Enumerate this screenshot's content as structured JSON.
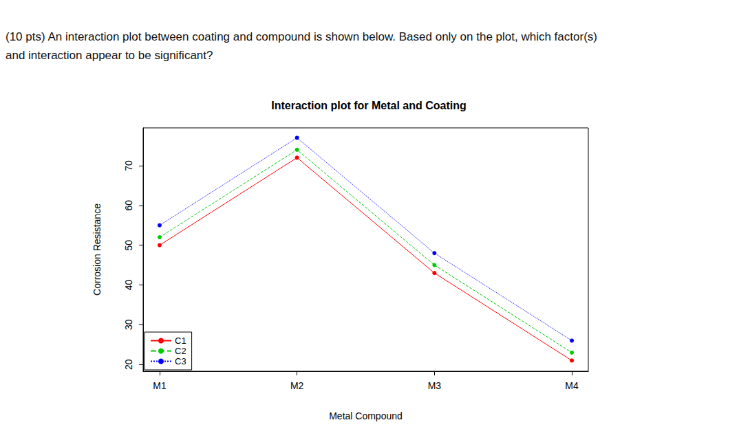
{
  "question": [
    "(10 pts) An interaction plot between coating and compound is shown below. Based only on the plot, which factor(s)",
    "and interaction appear to be significant?"
  ],
  "chart_data": {
    "type": "line",
    "title": "Interaction plot for Metal and Coating",
    "x_label": "Metal Compound",
    "y_label": "Corrosion Resistance",
    "x": [
      1,
      2,
      3,
      4
    ],
    "xlim": [
      0.88,
      4.12
    ],
    "xticks": [
      {
        "value": 1,
        "label": "M1"
      },
      {
        "value": 2,
        "label": "M2"
      },
      {
        "value": 3,
        "label": "M3"
      },
      {
        "value": 4,
        "label": "M4"
      }
    ],
    "ylim": [
      18.3,
      79.5
    ],
    "yticks": [
      20,
      30,
      40,
      50,
      60,
      70
    ],
    "grid": false,
    "legend": "bottom-left",
    "series": [
      {
        "name": "C1",
        "color": "#ff0000",
        "line_style": "solid",
        "marker": "circle",
        "values": [
          50,
          72,
          43,
          21
        ]
      },
      {
        "name": "C2",
        "color": "#00cc00",
        "line_style": "dashed",
        "marker": "circle",
        "values": [
          52,
          74,
          45,
          23
        ]
      },
      {
        "name": "C3",
        "color": "#0000ff",
        "line_style": "dotted",
        "marker": "circle",
        "values": [
          55,
          77,
          48,
          26
        ]
      }
    ]
  }
}
